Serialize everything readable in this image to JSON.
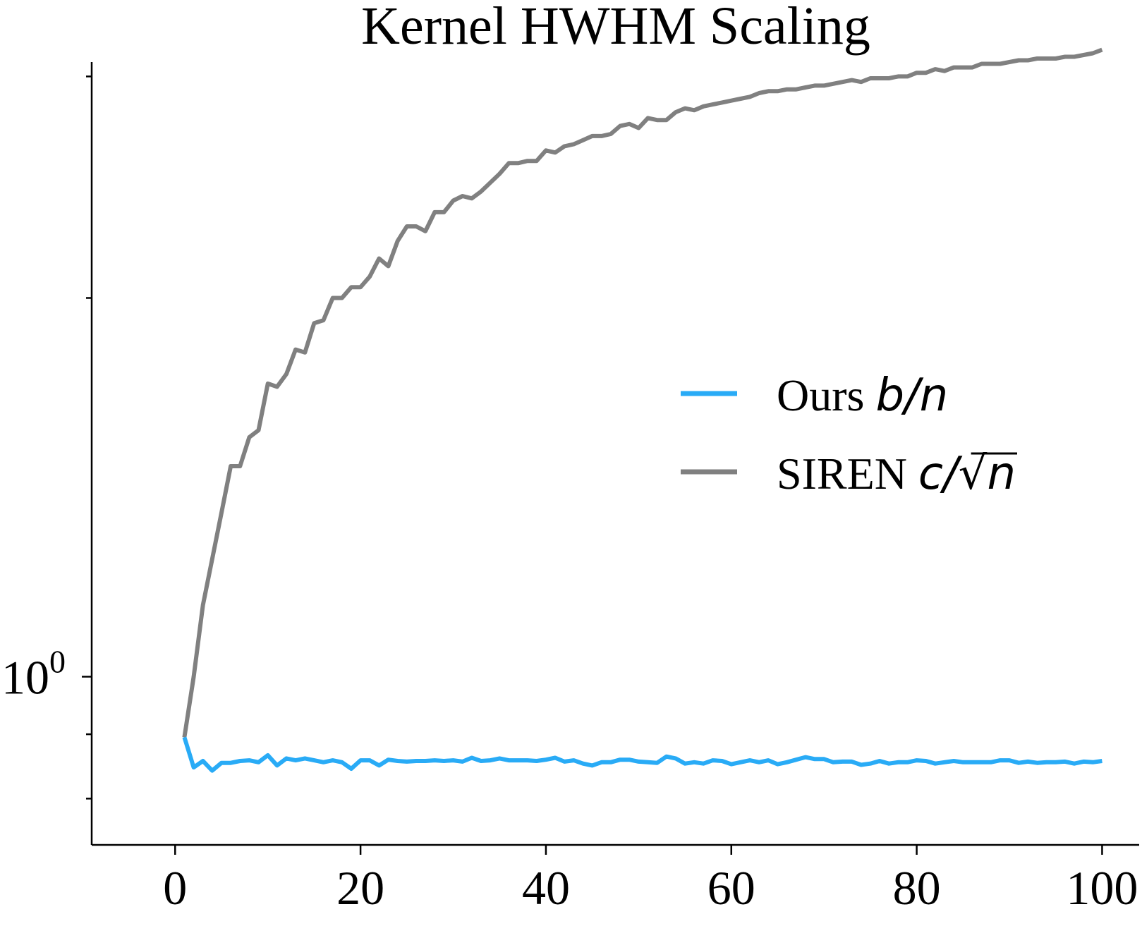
{
  "chart_data": {
    "type": "line",
    "title": "Kernel HWHM Scaling",
    "xlabel": "",
    "ylabel": "",
    "yscale": "log",
    "xlim": [
      -9,
      104
    ],
    "ylim": [
      0.735,
      3.08
    ],
    "xticks": [
      0,
      20,
      40,
      60,
      80,
      100
    ],
    "xtick_labels": [
      "0",
      "20",
      "40",
      "60",
      "80",
      "100"
    ],
    "ytick_major": [
      1.0
    ],
    "ytick_major_labels": [
      {
        "base": "10",
        "exp": "0"
      }
    ],
    "ytick_minor": [
      0.8,
      0.9,
      2,
      3
    ],
    "legend_position": "center-right",
    "grid": false,
    "series": [
      {
        "name_prefix": "Ours ",
        "name_math": "b/n",
        "color": "#29abf6",
        "x": [
          1,
          2,
          3,
          4,
          5,
          6,
          7,
          8,
          9,
          10,
          11,
          12,
          13,
          14,
          15,
          16,
          17,
          18,
          19,
          20,
          21,
          22,
          23,
          24,
          25,
          26,
          27,
          28,
          29,
          30,
          31,
          32,
          33,
          34,
          35,
          36,
          37,
          38,
          39,
          40,
          41,
          42,
          43,
          44,
          45,
          46,
          47,
          48,
          49,
          50,
          51,
          52,
          53,
          54,
          55,
          56,
          57,
          58,
          59,
          60,
          61,
          62,
          63,
          64,
          65,
          66,
          67,
          68,
          69,
          70,
          71,
          72,
          73,
          74,
          75,
          76,
          77,
          78,
          79,
          80,
          81,
          82,
          83,
          84,
          85,
          86,
          87,
          88,
          89,
          90,
          91,
          92,
          93,
          94,
          95,
          96,
          97,
          98,
          99,
          100
        ],
        "y": [
          0.895,
          0.847,
          0.857,
          0.842,
          0.854,
          0.854,
          0.857,
          0.858,
          0.855,
          0.866,
          0.85,
          0.861,
          0.858,
          0.861,
          0.858,
          0.855,
          0.858,
          0.855,
          0.845,
          0.858,
          0.858,
          0.85,
          0.859,
          0.857,
          0.856,
          0.857,
          0.857,
          0.858,
          0.857,
          0.858,
          0.856,
          0.862,
          0.857,
          0.858,
          0.861,
          0.858,
          0.858,
          0.858,
          0.857,
          0.859,
          0.862,
          0.856,
          0.858,
          0.853,
          0.85,
          0.855,
          0.855,
          0.859,
          0.859,
          0.856,
          0.855,
          0.854,
          0.864,
          0.861,
          0.853,
          0.855,
          0.853,
          0.858,
          0.857,
          0.852,
          0.855,
          0.858,
          0.855,
          0.858,
          0.852,
          0.855,
          0.859,
          0.863,
          0.86,
          0.86,
          0.855,
          0.856,
          0.856,
          0.851,
          0.853,
          0.857,
          0.853,
          0.855,
          0.855,
          0.858,
          0.857,
          0.853,
          0.855,
          0.857,
          0.855,
          0.855,
          0.855,
          0.855,
          0.858,
          0.858,
          0.854,
          0.856,
          0.854,
          0.855,
          0.855,
          0.856,
          0.853,
          0.856,
          0.855,
          0.857
        ]
      },
      {
        "name_prefix": "SIREN ",
        "name_math": "c/√n",
        "color": "#808080",
        "x": [
          1,
          2,
          3,
          4,
          5,
          6,
          7,
          8,
          9,
          10,
          11,
          12,
          13,
          14,
          15,
          16,
          17,
          18,
          19,
          20,
          21,
          22,
          23,
          24,
          25,
          26,
          27,
          28,
          29,
          30,
          31,
          32,
          33,
          34,
          35,
          36,
          37,
          38,
          39,
          40,
          41,
          42,
          43,
          44,
          45,
          46,
          47,
          48,
          49,
          50,
          51,
          52,
          53,
          54,
          55,
          56,
          57,
          58,
          59,
          60,
          61,
          62,
          63,
          64,
          65,
          66,
          67,
          68,
          69,
          70,
          71,
          72,
          73,
          74,
          75,
          76,
          77,
          78,
          79,
          80,
          81,
          82,
          83,
          84,
          85,
          86,
          87,
          88,
          89,
          90,
          91,
          92,
          93,
          94,
          95,
          96,
          97,
          98,
          99,
          100
        ],
        "y": [
          0.895,
          1.0,
          1.14,
          1.24,
          1.35,
          1.47,
          1.47,
          1.55,
          1.57,
          1.71,
          1.7,
          1.74,
          1.82,
          1.81,
          1.91,
          1.92,
          2.0,
          2.0,
          2.04,
          2.04,
          2.08,
          2.15,
          2.12,
          2.22,
          2.28,
          2.28,
          2.26,
          2.34,
          2.34,
          2.39,
          2.41,
          2.4,
          2.43,
          2.47,
          2.51,
          2.56,
          2.56,
          2.57,
          2.57,
          2.62,
          2.61,
          2.64,
          2.65,
          2.67,
          2.69,
          2.69,
          2.7,
          2.74,
          2.75,
          2.73,
          2.78,
          2.77,
          2.77,
          2.81,
          2.83,
          2.82,
          2.84,
          2.85,
          2.86,
          2.87,
          2.88,
          2.89,
          2.91,
          2.92,
          2.92,
          2.93,
          2.93,
          2.94,
          2.95,
          2.95,
          2.96,
          2.97,
          2.98,
          2.97,
          2.99,
          2.99,
          2.99,
          3.0,
          3.0,
          3.02,
          3.02,
          3.04,
          3.03,
          3.05,
          3.05,
          3.05,
          3.07,
          3.07,
          3.07,
          3.08,
          3.09,
          3.09,
          3.1,
          3.1,
          3.1,
          3.11,
          3.11,
          3.12,
          3.13,
          3.15
        ]
      }
    ]
  }
}
